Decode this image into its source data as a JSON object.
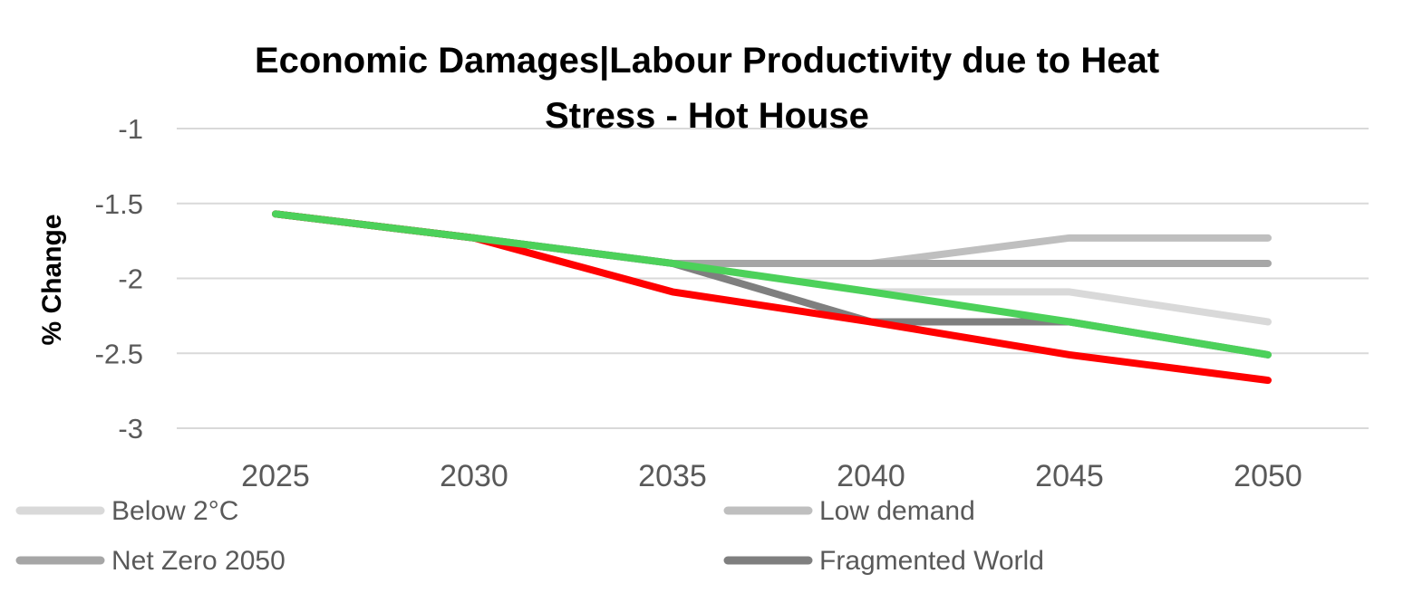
{
  "chart_data": {
    "type": "line",
    "title_lines": [
      "Economic Damages|Labour Productivity due to Heat",
      "Stress - Hot House"
    ],
    "ylabel": "% Change",
    "xlabel": "",
    "x": [
      "2025",
      "2030",
      "2035",
      "2040",
      "2045",
      "2050"
    ],
    "ylim": [
      -3,
      -1
    ],
    "yticks": [
      -1,
      -1.5,
      -2,
      -2.5,
      -3
    ],
    "ytick_labels": [
      "-1",
      "-1.5",
      "-2",
      "-2.5",
      "-3"
    ],
    "grid": true,
    "legend_position": "bottom",
    "series": [
      {
        "name": "Below 2°C",
        "values": [
          -1.57,
          -1.73,
          -1.9,
          -2.09,
          -2.09,
          -2.29
        ],
        "color": "#d9d9d9",
        "in_legend": true
      },
      {
        "name": "Low demand",
        "values": [
          -1.57,
          -1.73,
          -1.9,
          -1.9,
          -1.73,
          -1.73
        ],
        "color": "#bfbfbf",
        "in_legend": true
      },
      {
        "name": "Net Zero 2050",
        "values": [
          -1.57,
          -1.73,
          -1.9,
          -1.9,
          -1.9,
          -1.9
        ],
        "color": "#a6a6a6",
        "in_legend": true
      },
      {
        "name": "Fragmented World",
        "values": [
          -1.57,
          -1.73,
          -1.9,
          -2.29,
          -2.29,
          -2.51
        ],
        "color": "#7f7f7f",
        "in_legend": true
      },
      {
        "values": [
          -1.57,
          -1.73,
          -2.09,
          -2.29,
          -2.51,
          -2.68
        ],
        "color": "#ff0000",
        "in_legend": false
      },
      {
        "values": [
          -1.57,
          -1.73,
          -1.9,
          -2.09,
          -2.29,
          -2.51
        ],
        "color": "#4cd15a",
        "in_legend": false
      }
    ]
  }
}
